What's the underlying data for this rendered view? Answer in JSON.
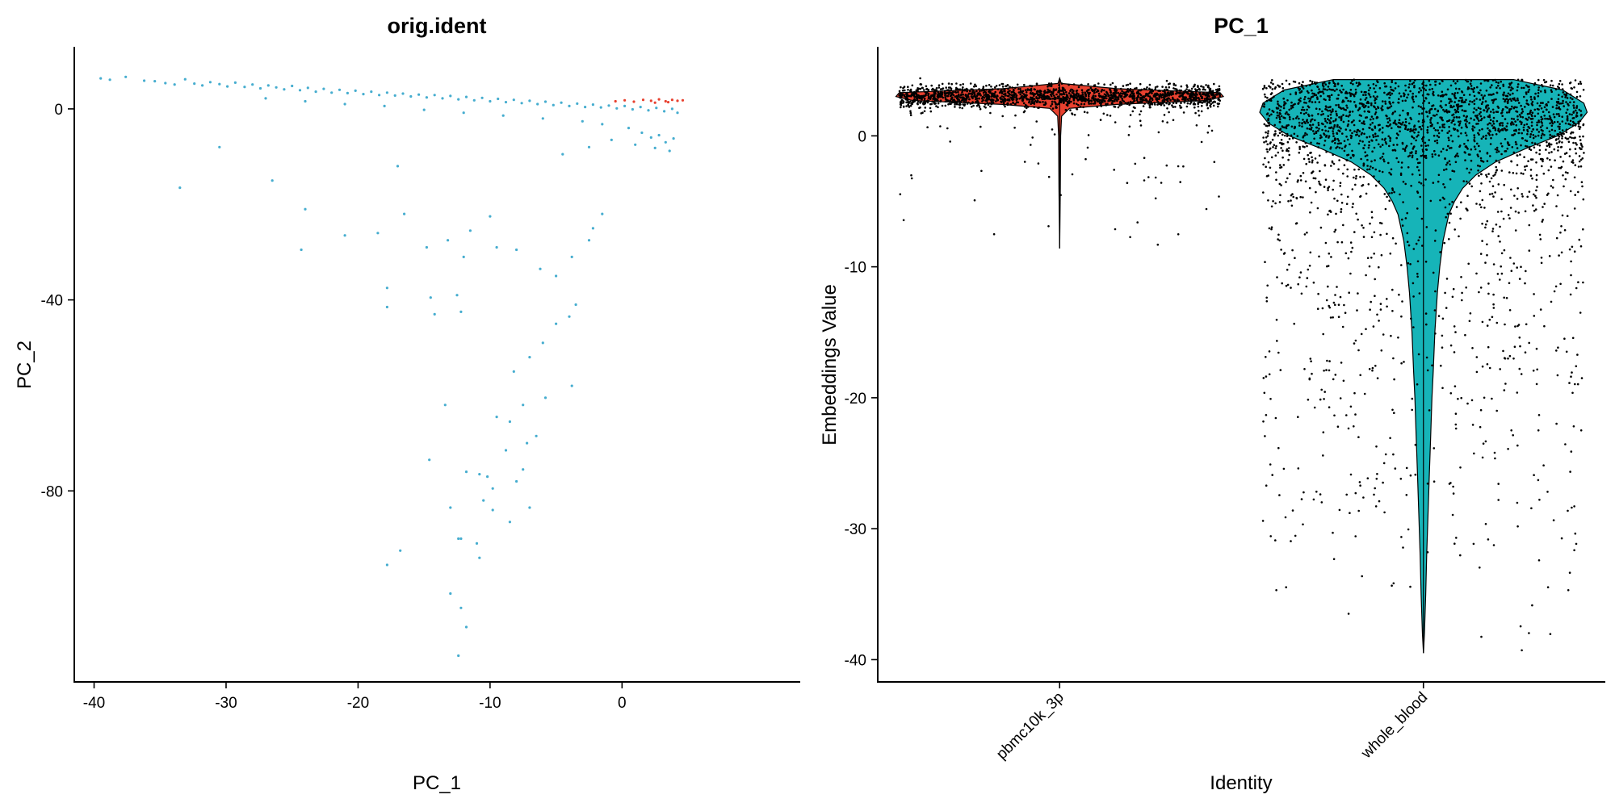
{
  "chart_data": [
    {
      "type": "scatter",
      "title": "orig.ident",
      "xlabel": "PC_1",
      "ylabel": "PC_2",
      "xlim": [
        -41.5,
        13.5
      ],
      "ylim": [
        -120,
        13
      ],
      "xticks": [
        -40,
        -30,
        -20,
        -10,
        0
      ],
      "yticks": [
        0,
        -40,
        -80
      ],
      "grid": false,
      "legend": "none",
      "series": [
        {
          "color": "#46adcf",
          "points": [
            [
              -39.5,
              6.4
            ],
            [
              -38.8,
              6.1
            ],
            [
              -37.6,
              6.7
            ],
            [
              -36.2,
              5.9
            ],
            [
              -35.4,
              5.8
            ],
            [
              -34.6,
              5.4
            ],
            [
              -33.9,
              5.1
            ],
            [
              -33.1,
              6.2
            ],
            [
              -32.4,
              5.3
            ],
            [
              -31.8,
              4.9
            ],
            [
              -31.2,
              5.6
            ],
            [
              -30.5,
              5.2
            ],
            [
              -29.9,
              4.7
            ],
            [
              -29.3,
              5.5
            ],
            [
              -28.6,
              4.6
            ],
            [
              -28.0,
              5.1
            ],
            [
              -27.4,
              4.3
            ],
            [
              -26.8,
              4.9
            ],
            [
              -26.2,
              4.5
            ],
            [
              -25.6,
              4.1
            ],
            [
              -25.0,
              4.8
            ],
            [
              -24.4,
              3.9
            ],
            [
              -23.8,
              4.4
            ],
            [
              -23.2,
              3.6
            ],
            [
              -22.6,
              4.2
            ],
            [
              -22.0,
              3.4
            ],
            [
              -21.4,
              4.0
            ],
            [
              -20.8,
              3.3
            ],
            [
              -20.2,
              3.8
            ],
            [
              -19.6,
              3.1
            ],
            [
              -19.0,
              3.6
            ],
            [
              -18.4,
              2.9
            ],
            [
              -17.8,
              3.4
            ],
            [
              -17.2,
              2.8
            ],
            [
              -16.6,
              3.2
            ],
            [
              -16.0,
              2.6
            ],
            [
              -15.4,
              3.0
            ],
            [
              -14.8,
              2.4
            ],
            [
              -14.2,
              2.9
            ],
            [
              -13.6,
              2.2
            ],
            [
              -13.0,
              2.7
            ],
            [
              -12.4,
              2.0
            ],
            [
              -11.8,
              2.5
            ],
            [
              -11.2,
              1.8
            ],
            [
              -10.6,
              2.3
            ],
            [
              -10.0,
              1.6
            ],
            [
              -9.4,
              2.1
            ],
            [
              -8.8,
              1.4
            ],
            [
              -8.2,
              1.9
            ],
            [
              -7.6,
              1.2
            ],
            [
              -7.0,
              1.7
            ],
            [
              -6.4,
              1.0
            ],
            [
              -5.8,
              1.5
            ],
            [
              -5.2,
              0.8
            ],
            [
              -4.6,
              1.3
            ],
            [
              -4.0,
              0.6
            ],
            [
              -3.4,
              1.1
            ],
            [
              -2.8,
              0.4
            ],
            [
              -2.2,
              0.9
            ],
            [
              -1.6,
              0.3
            ],
            [
              -1.0,
              0.7
            ],
            [
              -0.4,
              0.1
            ],
            [
              0.2,
              0.6
            ],
            [
              0.8,
              -0.1
            ],
            [
              1.4,
              0.4
            ],
            [
              2.0,
              -0.3
            ],
            [
              2.6,
              0.2
            ],
            [
              3.2,
              -0.5
            ],
            [
              3.8,
              0.0
            ],
            [
              4.2,
              -0.8
            ],
            [
              -27.0,
              2.2
            ],
            [
              -24.0,
              1.6
            ],
            [
              -21.0,
              1.0
            ],
            [
              -18.0,
              0.6
            ],
            [
              -15.0,
              -0.2
            ],
            [
              -12.0,
              -0.8
            ],
            [
              -9.0,
              -1.4
            ],
            [
              -6.0,
              -2.0
            ],
            [
              -3.0,
              -2.6
            ],
            [
              -1.5,
              -3.2
            ],
            [
              0.5,
              -4.0
            ],
            [
              1.5,
              -5.0
            ],
            [
              2.2,
              -6.0
            ],
            [
              2.8,
              -5.5
            ],
            [
              3.3,
              -7.0
            ],
            [
              3.9,
              -6.2
            ],
            [
              2.5,
              -8.2
            ],
            [
              3.6,
              -8.8
            ],
            [
              1.0,
              -7.5
            ],
            [
              -0.8,
              -6.5
            ],
            [
              -2.5,
              -8.0
            ],
            [
              -4.5,
              -9.5
            ],
            [
              -30.5,
              -8.0
            ],
            [
              -33.5,
              -16.5
            ],
            [
              -26.5,
              -15.0
            ],
            [
              -24.0,
              -21.0
            ],
            [
              -24.3,
              -29.5
            ],
            [
              -21.0,
              -26.5
            ],
            [
              -18.5,
              -26.0
            ],
            [
              -16.5,
              -22.0
            ],
            [
              -14.8,
              -29.0
            ],
            [
              -13.2,
              -27.5
            ],
            [
              -11.5,
              -25.5
            ],
            [
              -10.0,
              -22.5
            ],
            [
              -9.5,
              -29.0
            ],
            [
              -12.0,
              -31.0
            ],
            [
              -8.0,
              -29.5
            ],
            [
              -6.2,
              -33.5
            ],
            [
              -5.0,
              -35.0
            ],
            [
              -3.8,
              -31.0
            ],
            [
              -2.5,
              -27.5
            ],
            [
              -1.5,
              -22.0
            ],
            [
              -2.2,
              -25.0
            ],
            [
              -17.8,
              -37.5
            ],
            [
              -17.8,
              -41.5
            ],
            [
              -14.5,
              -39.5
            ],
            [
              -14.2,
              -43.0
            ],
            [
              -12.2,
              -42.5
            ],
            [
              -12.5,
              -39.0
            ],
            [
              -5.0,
              -45.0
            ],
            [
              -4.0,
              -43.5
            ],
            [
              -3.5,
              -41.0
            ],
            [
              -6.0,
              -49.0
            ],
            [
              -7.0,
              -52.0
            ],
            [
              -8.2,
              -55.0
            ],
            [
              -3.8,
              -58.0
            ],
            [
              -5.8,
              -60.5
            ],
            [
              -7.5,
              -62.0
            ],
            [
              -9.5,
              -64.5
            ],
            [
              -8.5,
              -65.5
            ],
            [
              -6.5,
              -68.5
            ],
            [
              -7.2,
              -70.0
            ],
            [
              -8.8,
              -71.5
            ],
            [
              -10.2,
              -77.0
            ],
            [
              -9.8,
              -79.5
            ],
            [
              -10.5,
              -82.0
            ],
            [
              -8.0,
              -78.0
            ],
            [
              -7.5,
              -75.5
            ],
            [
              -9.8,
              -84.0
            ],
            [
              -8.5,
              -86.5
            ],
            [
              -7.0,
              -83.5
            ],
            [
              -10.8,
              -76.5
            ],
            [
              -11.8,
              -76.0
            ],
            [
              -13.0,
              -83.5
            ],
            [
              -12.4,
              -90.0
            ],
            [
              -11.0,
              -91.0
            ],
            [
              -10.8,
              -94.0
            ],
            [
              -16.8,
              -92.5
            ],
            [
              -17.8,
              -95.5
            ],
            [
              -13.0,
              -101.5
            ],
            [
              -12.2,
              -104.5
            ],
            [
              -11.8,
              -108.5
            ],
            [
              -12.4,
              -114.5
            ],
            [
              -12.2,
              -90.0
            ],
            [
              -14.6,
              -73.5
            ],
            [
              -13.4,
              -62.0
            ],
            [
              -17.0,
              -12.0
            ]
          ]
        },
        {
          "color": "#e8412f",
          "points": [
            [
              -0.5,
              1.6
            ],
            [
              0.2,
              1.8
            ],
            [
              0.9,
              1.5
            ],
            [
              1.6,
              1.9
            ],
            [
              2.2,
              1.7
            ],
            [
              2.8,
              2.0
            ],
            [
              3.3,
              1.6
            ],
            [
              3.8,
              1.9
            ],
            [
              4.2,
              1.7
            ],
            [
              4.6,
              1.8
            ],
            [
              2.5,
              1.3
            ],
            [
              3.5,
              1.4
            ]
          ]
        }
      ]
    },
    {
      "type": "violin",
      "title": "PC_1",
      "xlabel": "Identity",
      "ylabel": "Embeddings Value",
      "ylim": [
        -41.7,
        6.8
      ],
      "yticks": [
        0,
        -10,
        -20,
        -30,
        -40
      ],
      "categories": [
        "pbmc10k_3p",
        "whole_blood"
      ],
      "grid": false,
      "legend": "none",
      "violins": [
        {
          "category": "pbmc10k_3p",
          "fill": "#e8412f",
          "min": -8.6,
          "max": 4.4,
          "median": 3.0,
          "profile": [
            [
              4.4,
              0.0
            ],
            [
              4.0,
              0.01
            ],
            [
              3.6,
              0.35
            ],
            [
              3.3,
              0.98
            ],
            [
              3.0,
              1.0
            ],
            [
              2.7,
              0.9
            ],
            [
              2.4,
              0.35
            ],
            [
              2.1,
              0.06
            ],
            [
              1.5,
              0.012
            ],
            [
              0.0,
              0.006
            ],
            [
              -4.0,
              0.004
            ],
            [
              -8.6,
              0.0
            ]
          ]
        },
        {
          "category": "whole_blood",
          "fill": "#16b4b8",
          "min": -39.5,
          "max": 4.3,
          "median": 1.8,
          "profile": [
            [
              4.3,
              0.55
            ],
            [
              3.5,
              0.85
            ],
            [
              2.5,
              0.98
            ],
            [
              1.8,
              1.0
            ],
            [
              1.0,
              0.95
            ],
            [
              0.0,
              0.82
            ],
            [
              -1.0,
              0.62
            ],
            [
              -2.0,
              0.44
            ],
            [
              -3.0,
              0.32
            ],
            [
              -4.0,
              0.24
            ],
            [
              -5.0,
              0.19
            ],
            [
              -6.0,
              0.155
            ],
            [
              -8.0,
              0.12
            ],
            [
              -10.0,
              0.1
            ],
            [
              -12.0,
              0.085
            ],
            [
              -15.0,
              0.07
            ],
            [
              -18.0,
              0.06
            ],
            [
              -20.0,
              0.052
            ],
            [
              -23.0,
              0.044
            ],
            [
              -26.0,
              0.036
            ],
            [
              -29.0,
              0.028
            ],
            [
              -32.0,
              0.02
            ],
            [
              -35.0,
              0.014
            ],
            [
              -38.0,
              0.006
            ],
            [
              -39.5,
              0.0
            ]
          ]
        }
      ]
    }
  ]
}
